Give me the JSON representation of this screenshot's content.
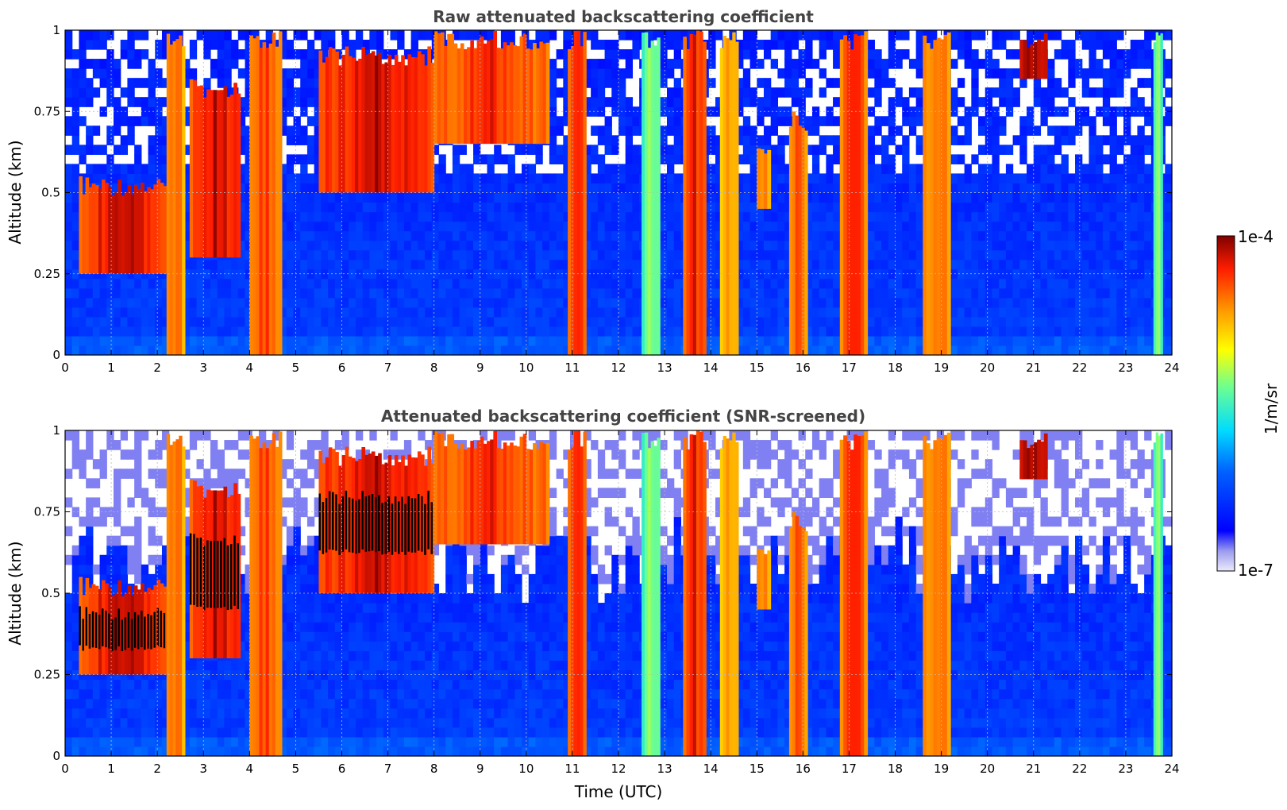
{
  "figure": {
    "xlabel": "Time (UTC)",
    "colorbar": {
      "label": "1/m/sr",
      "min_label": "1e-7",
      "max_label": "1e-4",
      "scale": "log",
      "range": [
        1e-07,
        0.0001
      ],
      "colormap": "jet"
    }
  },
  "chart_data": [
    {
      "type": "heatmap",
      "title": "Raw attenuated backscattering coefficient",
      "xlabel": "",
      "ylabel": "Altitude (km)",
      "xlim": [
        0,
        24
      ],
      "ylim": [
        0,
        1
      ],
      "xticks": [
        "0",
        "1",
        "2",
        "3",
        "4",
        "5",
        "6",
        "7",
        "8",
        "9",
        "10",
        "11",
        "12",
        "13",
        "14",
        "15",
        "16",
        "17",
        "18",
        "19",
        "20",
        "21",
        "22",
        "23",
        "24"
      ],
      "yticks": [
        "0",
        "0.25",
        "0.5",
        "0.75",
        "1"
      ],
      "grid": true,
      "screened": false,
      "features": [
        {
          "t0": 0.3,
          "t1": 2.2,
          "base": 0.25,
          "top": 0.55,
          "level": 0.95
        },
        {
          "t0": 2.2,
          "t1": 2.6,
          "base": 0.0,
          "top": 1.0,
          "level": 0.85
        },
        {
          "t0": 2.7,
          "t1": 3.8,
          "base": 0.3,
          "top": 0.85,
          "level": 0.95
        },
        {
          "t0": 4.0,
          "t1": 4.7,
          "base": 0.0,
          "top": 1.0,
          "level": 0.88
        },
        {
          "t0": 5.5,
          "t1": 8.0,
          "base": 0.5,
          "top": 0.95,
          "level": 0.95
        },
        {
          "t0": 8.0,
          "t1": 10.5,
          "base": 0.65,
          "top": 1.0,
          "level": 0.9
        },
        {
          "t0": 10.9,
          "t1": 11.3,
          "base": 0.0,
          "top": 1.0,
          "level": 0.9
        },
        {
          "t0": 12.5,
          "t1": 12.9,
          "base": 0.0,
          "top": 1.0,
          "level": 0.6
        },
        {
          "t0": 13.4,
          "t1": 13.9,
          "base": 0.0,
          "top": 1.0,
          "level": 0.92
        },
        {
          "t0": 14.2,
          "t1": 14.6,
          "base": 0.0,
          "top": 1.0,
          "level": 0.8
        },
        {
          "t0": 15.0,
          "t1": 15.3,
          "base": 0.45,
          "top": 0.68,
          "level": 0.85
        },
        {
          "t0": 15.7,
          "t1": 16.1,
          "base": 0.0,
          "top": 0.75,
          "level": 0.85
        },
        {
          "t0": 16.8,
          "t1": 17.4,
          "base": 0.0,
          "top": 1.0,
          "level": 0.9
        },
        {
          "t0": 18.6,
          "t1": 19.2,
          "base": 0.0,
          "top": 1.0,
          "level": 0.85
        },
        {
          "t0": 20.7,
          "t1": 21.3,
          "base": 0.85,
          "top": 1.0,
          "level": 1.0
        },
        {
          "t0": 23.6,
          "t1": 23.8,
          "base": 0.0,
          "top": 1.0,
          "level": 0.6
        }
      ]
    },
    {
      "type": "heatmap",
      "title": "Attenuated backscattering coefficient (SNR-screened)",
      "xlabel": "Time (UTC)",
      "ylabel": "Altitude (km)",
      "xlim": [
        0,
        24
      ],
      "ylim": [
        0,
        1
      ],
      "xticks": [
        "0",
        "1",
        "2",
        "3",
        "4",
        "5",
        "6",
        "7",
        "8",
        "9",
        "10",
        "11",
        "12",
        "13",
        "14",
        "15",
        "16",
        "17",
        "18",
        "19",
        "20",
        "21",
        "22",
        "23",
        "24"
      ],
      "yticks": [
        "0",
        "0.25",
        "0.5",
        "0.75",
        "1"
      ],
      "grid": true,
      "screened": true,
      "features": [
        {
          "t0": 0.3,
          "t1": 2.2,
          "base": 0.25,
          "top": 0.55,
          "level": 0.95
        },
        {
          "t0": 2.2,
          "t1": 2.6,
          "base": 0.0,
          "top": 1.0,
          "level": 0.85
        },
        {
          "t0": 2.7,
          "t1": 3.8,
          "base": 0.3,
          "top": 0.85,
          "level": 0.95
        },
        {
          "t0": 4.0,
          "t1": 4.7,
          "base": 0.0,
          "top": 1.0,
          "level": 0.88
        },
        {
          "t0": 5.5,
          "t1": 8.0,
          "base": 0.5,
          "top": 0.95,
          "level": 0.95
        },
        {
          "t0": 8.0,
          "t1": 10.5,
          "base": 0.65,
          "top": 1.0,
          "level": 0.9
        },
        {
          "t0": 10.9,
          "t1": 11.3,
          "base": 0.0,
          "top": 1.0,
          "level": 0.9
        },
        {
          "t0": 12.5,
          "t1": 12.9,
          "base": 0.0,
          "top": 1.0,
          "level": 0.6
        },
        {
          "t0": 13.4,
          "t1": 13.9,
          "base": 0.0,
          "top": 1.0,
          "level": 0.92
        },
        {
          "t0": 14.2,
          "t1": 14.6,
          "base": 0.0,
          "top": 1.0,
          "level": 0.8
        },
        {
          "t0": 15.0,
          "t1": 15.3,
          "base": 0.45,
          "top": 0.68,
          "level": 0.85
        },
        {
          "t0": 15.7,
          "t1": 16.1,
          "base": 0.0,
          "top": 0.75,
          "level": 0.85
        },
        {
          "t0": 16.8,
          "t1": 17.4,
          "base": 0.0,
          "top": 1.0,
          "level": 0.9
        },
        {
          "t0": 18.6,
          "t1": 19.2,
          "base": 0.0,
          "top": 1.0,
          "level": 0.85
        },
        {
          "t0": 20.7,
          "t1": 21.3,
          "base": 0.85,
          "top": 1.0,
          "level": 1.0
        },
        {
          "t0": 23.6,
          "t1": 23.8,
          "base": 0.0,
          "top": 1.0,
          "level": 0.6
        }
      ]
    }
  ]
}
